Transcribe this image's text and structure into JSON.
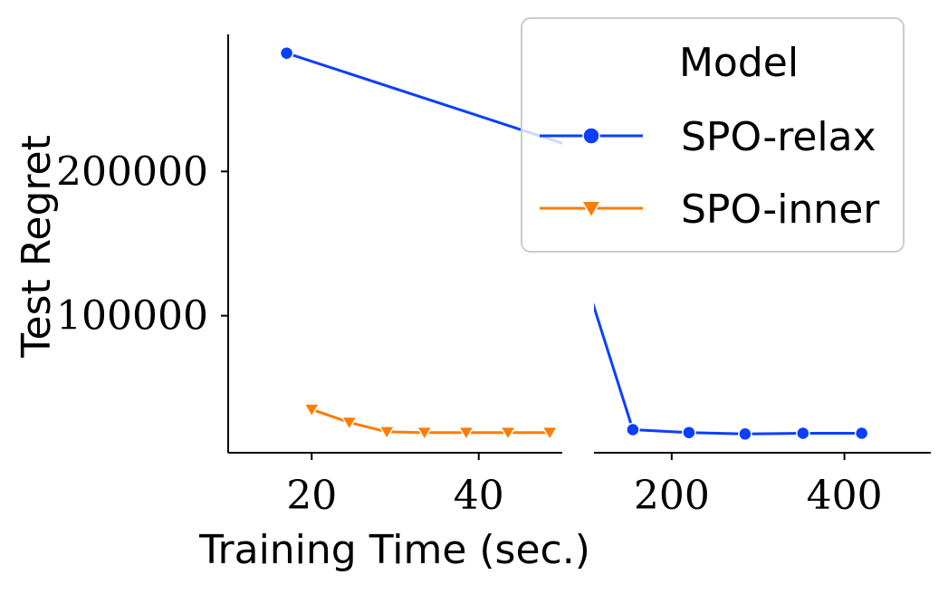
{
  "chart_data": {
    "type": "line",
    "ylabel": "Test Regret",
    "xlabel": "Training Time (sec.)",
    "broken_x_axis": true,
    "panels": [
      {
        "name": "left",
        "xlim": [
          10,
          50
        ],
        "xticks": [
          20,
          40
        ],
        "xtick_labels": [
          "20",
          "40"
        ]
      },
      {
        "name": "right",
        "xlim": [
          110,
          500
        ],
        "xticks": [
          200,
          400
        ],
        "xtick_labels": [
          "200",
          "400"
        ]
      }
    ],
    "ylim": [
      5000,
      295000
    ],
    "yticks": [
      100000,
      200000
    ],
    "ytick_labels": [
      "100000",
      "200000"
    ],
    "legend": {
      "title": "Model",
      "position": "top-right"
    },
    "series": [
      {
        "name": "SPO-relax",
        "color": "#0a3fff",
        "marker": "circle",
        "x": [
          17,
          155,
          220,
          285,
          352,
          420
        ],
        "y": [
          282000,
          21000,
          19000,
          18000,
          18500,
          18500
        ]
      },
      {
        "name": "SPO-inner",
        "color": "#ff7c00",
        "marker": "triangle-down",
        "x": [
          20,
          24.5,
          29,
          33.5,
          38.5,
          43.5,
          48.5
        ],
        "y": [
          35000,
          26000,
          19500,
          19000,
          19000,
          19000,
          19000
        ]
      }
    ]
  }
}
